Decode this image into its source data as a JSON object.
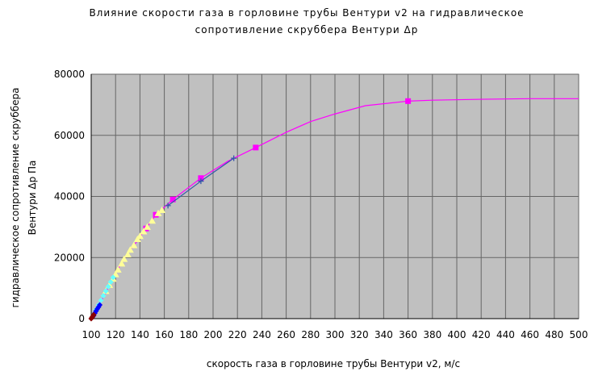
{
  "chart_data": {
    "type": "scatter",
    "title_lines": [
      "Влияние скорости газа в горловине трубы Вентури v2 на гидравлическое",
      "сопротивление скруббера Вентури Δр"
    ],
    "y_label_lines": [
      "гидравлическое сопротивление скруббера",
      "Вентури Δр Па"
    ],
    "x_label": "скорость газа в горловине трубы Вентури v2,  м/с",
    "xlim": [
      100,
      500
    ],
    "xticks": [
      100,
      120,
      140,
      160,
      180,
      200,
      220,
      240,
      260,
      280,
      300,
      320,
      340,
      360,
      380,
      400,
      420,
      440,
      460,
      480,
      500
    ],
    "ylim": [
      0,
      80000
    ],
    "yticks": [
      0,
      20000,
      40000,
      60000,
      80000
    ],
    "grid": true,
    "plot_background": "#c0c0c0",
    "series": [
      {
        "color": "#ff00ff",
        "mode": "line",
        "x": [
          100,
          110,
          120,
          130,
          137,
          145,
          153,
          167,
          190,
          212,
          235,
          260,
          280,
          300,
          325,
          360,
          380,
          420,
          460,
          500
        ],
        "values": [
          0,
          7000,
          15000,
          21500,
          25000,
          29500,
          34000,
          39000,
          46000,
          51500,
          56000,
          61000,
          64500,
          67000,
          69700,
          71200,
          71500,
          71800,
          72000,
          72000
        ]
      },
      {
        "color": "#ff00ff",
        "mode": "markers",
        "marker": "square",
        "x": [
          145,
          153,
          167,
          190,
          235,
          360
        ],
        "values": [
          29500,
          34000,
          39000,
          46000,
          56000,
          71200
        ]
      },
      {
        "color": "#3355aa",
        "mode": "line-markers",
        "marker": "plus",
        "x": [
          163,
          190,
          217
        ],
        "values": [
          37000,
          45000,
          52500
        ]
      },
      {
        "color": "#ffff99",
        "mode": "markers",
        "marker": "triangle",
        "x": [
          112,
          115,
          118,
          120,
          122,
          125,
          127,
          130,
          132,
          135,
          138,
          140,
          143,
          146,
          150,
          155,
          158
        ],
        "values": [
          9000,
          11000,
          13000,
          14500,
          16000,
          18000,
          19500,
          21000,
          22500,
          24000,
          26000,
          27000,
          28500,
          30000,
          32000,
          34500,
          35500
        ]
      },
      {
        "color": "#66ffff",
        "mode": "markers",
        "marker": "diamond",
        "x": [
          104,
          106,
          108,
          110,
          112,
          114,
          116,
          118
        ],
        "values": [
          3000,
          4500,
          6000,
          7500,
          9000,
          10500,
          12000,
          13500
        ]
      },
      {
        "color": "#0000ff",
        "mode": "markers",
        "marker": "diamond",
        "x": [
          101,
          102,
          103,
          104,
          105,
          106,
          107
        ],
        "values": [
          500,
          1000,
          1800,
          2500,
          3200,
          3800,
          4500
        ]
      },
      {
        "color": "#8b0000",
        "mode": "markers",
        "marker": "diamond",
        "x": [
          100,
          100.5,
          101,
          101.5,
          102
        ],
        "values": [
          0,
          300,
          600,
          900,
          1300
        ]
      }
    ]
  }
}
